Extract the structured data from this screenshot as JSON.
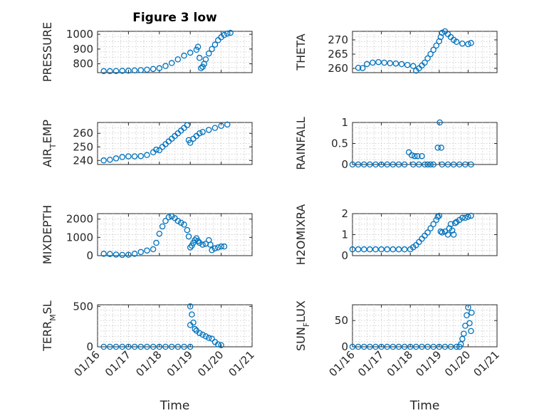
{
  "window": {
    "title": "Figure 3 low"
  },
  "chart_data": [
    {
      "type": "scatter",
      "title": "Figure 3 low",
      "ylabel": "PRESSURE",
      "xlabel": "",
      "xlim": [
        0,
        5
      ],
      "ylim": [
        740,
        1020
      ],
      "yticks": [
        800,
        900,
        1000
      ],
      "xtick_labels": [],
      "grid": true,
      "points": [
        [
          0.2,
          750
        ],
        [
          0.4,
          750
        ],
        [
          0.6,
          751
        ],
        [
          0.8,
          752
        ],
        [
          1.0,
          753
        ],
        [
          1.2,
          755
        ],
        [
          1.4,
          757
        ],
        [
          1.6,
          760
        ],
        [
          1.8,
          765
        ],
        [
          2.0,
          770
        ],
        [
          2.2,
          785
        ],
        [
          2.4,
          805
        ],
        [
          2.6,
          830
        ],
        [
          2.8,
          855
        ],
        [
          3.0,
          875
        ],
        [
          3.2,
          895
        ],
        [
          3.25,
          915
        ],
        [
          3.3,
          840
        ],
        [
          3.35,
          770
        ],
        [
          3.4,
          780
        ],
        [
          3.45,
          800
        ],
        [
          3.5,
          830
        ],
        [
          3.6,
          870
        ],
        [
          3.7,
          900
        ],
        [
          3.8,
          930
        ],
        [
          3.9,
          960
        ],
        [
          4.0,
          980
        ],
        [
          4.1,
          995
        ],
        [
          4.2,
          1005
        ],
        [
          4.3,
          1010
        ]
      ]
    },
    {
      "type": "scatter",
      "title": "",
      "ylabel": "THETA",
      "xlabel": "",
      "xlim": [
        0,
        5
      ],
      "ylim": [
        258.5,
        273
      ],
      "yticks": [
        260,
        265,
        270
      ],
      "xtick_labels": [],
      "grid": true,
      "points": [
        [
          0.2,
          260.2
        ],
        [
          0.35,
          260.1
        ],
        [
          0.5,
          261.5
        ],
        [
          0.7,
          262
        ],
        [
          0.9,
          262.2
        ],
        [
          1.1,
          262
        ],
        [
          1.3,
          261.8
        ],
        [
          1.5,
          261.7
        ],
        [
          1.7,
          261.5
        ],
        [
          1.9,
          261.2
        ],
        [
          2.1,
          260.8
        ],
        [
          2.2,
          259.2
        ],
        [
          2.3,
          260
        ],
        [
          2.4,
          261
        ],
        [
          2.5,
          262
        ],
        [
          2.6,
          263.5
        ],
        [
          2.7,
          265
        ],
        [
          2.8,
          266.5
        ],
        [
          2.9,
          268
        ],
        [
          3.0,
          269.5
        ],
        [
          3.05,
          271
        ],
        [
          3.1,
          272.5
        ],
        [
          3.2,
          273
        ],
        [
          3.3,
          272
        ],
        [
          3.4,
          271
        ],
        [
          3.5,
          270
        ],
        [
          3.6,
          269.3
        ],
        [
          3.8,
          268.7
        ],
        [
          4.0,
          268.5
        ],
        [
          4.1,
          268.9
        ]
      ]
    },
    {
      "type": "scatter",
      "title": "",
      "ylabel": "AIR_TEMP",
      "xlabel": "",
      "xlim": [
        0,
        5
      ],
      "ylim": [
        237,
        268
      ],
      "yticks": [
        240,
        250,
        260
      ],
      "xtick_labels": [],
      "grid": true,
      "points": [
        [
          0.2,
          240
        ],
        [
          0.4,
          240.5
        ],
        [
          0.6,
          241.5
        ],
        [
          0.8,
          242.5
        ],
        [
          1.0,
          243
        ],
        [
          1.2,
          243
        ],
        [
          1.4,
          243.2
        ],
        [
          1.6,
          244
        ],
        [
          1.8,
          246
        ],
        [
          1.9,
          248
        ],
        [
          2.0,
          247.5
        ],
        [
          2.1,
          250
        ],
        [
          2.2,
          252
        ],
        [
          2.3,
          254
        ],
        [
          2.4,
          256
        ],
        [
          2.5,
          258
        ],
        [
          2.6,
          260
        ],
        [
          2.7,
          262
        ],
        [
          2.8,
          264
        ],
        [
          2.9,
          266
        ],
        [
          2.95,
          255
        ],
        [
          3.0,
          253
        ],
        [
          3.1,
          256
        ],
        [
          3.2,
          258
        ],
        [
          3.3,
          260
        ],
        [
          3.4,
          261
        ],
        [
          3.6,
          262.5
        ],
        [
          3.8,
          264
        ],
        [
          4.0,
          265.5
        ],
        [
          4.2,
          266.5
        ]
      ]
    },
    {
      "type": "scatter",
      "title": "",
      "ylabel": "RAINFALL",
      "xlabel": "",
      "xlim": [
        0,
        5
      ],
      "ylim": [
        0,
        1
      ],
      "yticks": [
        0,
        0.5,
        1
      ],
      "xtick_labels": [],
      "grid": true,
      "points": [
        [
          0.0,
          0
        ],
        [
          0.2,
          0
        ],
        [
          0.4,
          0
        ],
        [
          0.6,
          0
        ],
        [
          0.8,
          0
        ],
        [
          1.0,
          0
        ],
        [
          1.2,
          0
        ],
        [
          1.4,
          0
        ],
        [
          1.6,
          0
        ],
        [
          1.8,
          0
        ],
        [
          1.95,
          0.29
        ],
        [
          2.05,
          0.22
        ],
        [
          2.1,
          0
        ],
        [
          2.15,
          0.2
        ],
        [
          2.25,
          0.2
        ],
        [
          2.3,
          0
        ],
        [
          2.4,
          0.2
        ],
        [
          2.5,
          0
        ],
        [
          2.6,
          0
        ],
        [
          2.7,
          0
        ],
        [
          2.8,
          0
        ],
        [
          2.95,
          0.4
        ],
        [
          3.02,
          1.0
        ],
        [
          3.07,
          0.4
        ],
        [
          3.1,
          0
        ],
        [
          3.3,
          0
        ],
        [
          3.5,
          0
        ],
        [
          3.7,
          0
        ],
        [
          3.9,
          0
        ],
        [
          4.1,
          0
        ]
      ]
    },
    {
      "type": "scatter",
      "title": "",
      "ylabel": "MIXDEPTH",
      "xlabel": "",
      "xlim": [
        0,
        5
      ],
      "ylim": [
        0,
        2300
      ],
      "yticks": [
        0,
        1000,
        2000
      ],
      "xtick_labels": [],
      "grid": true,
      "points": [
        [
          0.2,
          100
        ],
        [
          0.4,
          90
        ],
        [
          0.6,
          60
        ],
        [
          0.8,
          40
        ],
        [
          1.0,
          50
        ],
        [
          1.2,
          100
        ],
        [
          1.4,
          200
        ],
        [
          1.6,
          280
        ],
        [
          1.8,
          350
        ],
        [
          1.9,
          700
        ],
        [
          2.0,
          1200
        ],
        [
          2.1,
          1600
        ],
        [
          2.2,
          1900
        ],
        [
          2.3,
          2100
        ],
        [
          2.4,
          2150
        ],
        [
          2.5,
          2050
        ],
        [
          2.6,
          1900
        ],
        [
          2.7,
          1800
        ],
        [
          2.8,
          1700
        ],
        [
          2.9,
          1400
        ],
        [
          2.95,
          1050
        ],
        [
          3.0,
          450
        ],
        [
          3.05,
          550
        ],
        [
          3.1,
          700
        ],
        [
          3.15,
          850
        ],
        [
          3.2,
          950
        ],
        [
          3.25,
          800
        ],
        [
          3.3,
          700
        ],
        [
          3.4,
          600
        ],
        [
          3.5,
          650
        ],
        [
          3.6,
          850
        ],
        [
          3.65,
          600
        ],
        [
          3.7,
          300
        ],
        [
          3.8,
          400
        ],
        [
          3.9,
          450
        ],
        [
          4.0,
          500
        ],
        [
          4.1,
          500
        ]
      ]
    },
    {
      "type": "scatter",
      "title": "",
      "ylabel": "H2OMIXRA",
      "xlabel": "",
      "xlim": [
        0,
        5
      ],
      "ylim": [
        0,
        2
      ],
      "yticks": [
        0,
        1,
        2
      ],
      "xtick_labels": [],
      "grid": true,
      "points": [
        [
          0.0,
          0.3
        ],
        [
          0.2,
          0.3
        ],
        [
          0.4,
          0.3
        ],
        [
          0.6,
          0.3
        ],
        [
          0.8,
          0.3
        ],
        [
          1.0,
          0.3
        ],
        [
          1.2,
          0.3
        ],
        [
          1.4,
          0.3
        ],
        [
          1.6,
          0.3
        ],
        [
          1.8,
          0.3
        ],
        [
          2.0,
          0.3
        ],
        [
          2.1,
          0.4
        ],
        [
          2.2,
          0.5
        ],
        [
          2.3,
          0.65
        ],
        [
          2.4,
          0.8
        ],
        [
          2.5,
          0.95
        ],
        [
          2.6,
          1.1
        ],
        [
          2.7,
          1.3
        ],
        [
          2.8,
          1.5
        ],
        [
          2.9,
          1.7
        ],
        [
          2.95,
          1.85
        ],
        [
          3.0,
          1.9
        ],
        [
          3.05,
          1.15
        ],
        [
          3.1,
          1.1
        ],
        [
          3.2,
          1.15
        ],
        [
          3.3,
          1.0
        ],
        [
          3.35,
          1.3
        ],
        [
          3.4,
          1.5
        ],
        [
          3.45,
          1.2
        ],
        [
          3.5,
          1.0
        ],
        [
          3.55,
          1.55
        ],
        [
          3.6,
          1.6
        ],
        [
          3.7,
          1.7
        ],
        [
          3.8,
          1.8
        ],
        [
          3.9,
          1.8
        ],
        [
          4.0,
          1.85
        ],
        [
          4.1,
          1.9
        ]
      ]
    },
    {
      "type": "scatter",
      "title": "",
      "ylabel": "TERR_MSL",
      "xlabel": "Time",
      "xlim": [
        0,
        5
      ],
      "ylim": [
        0,
        520
      ],
      "yticks": [
        0,
        500
      ],
      "grid": true,
      "xtick_labels": [
        "01/16",
        "01/17",
        "01/18",
        "01/19",
        "01/20",
        "01/21"
      ],
      "points": [
        [
          0.2,
          0
        ],
        [
          0.4,
          0
        ],
        [
          0.6,
          0
        ],
        [
          0.8,
          0
        ],
        [
          1.0,
          0
        ],
        [
          1.2,
          0
        ],
        [
          1.4,
          0
        ],
        [
          1.6,
          0
        ],
        [
          1.8,
          0
        ],
        [
          2.0,
          0
        ],
        [
          2.2,
          0
        ],
        [
          2.4,
          0
        ],
        [
          2.6,
          0
        ],
        [
          2.8,
          0
        ],
        [
          3.0,
          0
        ],
        [
          3.0,
          500
        ],
        [
          3.0,
          270
        ],
        [
          3.05,
          400
        ],
        [
          3.1,
          300
        ],
        [
          3.15,
          220
        ],
        [
          3.2,
          200
        ],
        [
          3.3,
          170
        ],
        [
          3.4,
          150
        ],
        [
          3.5,
          130
        ],
        [
          3.6,
          110
        ],
        [
          3.7,
          100
        ],
        [
          3.8,
          60
        ],
        [
          3.9,
          30
        ],
        [
          4.0,
          20
        ]
      ]
    },
    {
      "type": "scatter",
      "title": "",
      "ylabel": "SUN_FLUX",
      "xlabel": "Time",
      "xlim": [
        0,
        5
      ],
      "ylim": [
        0,
        80
      ],
      "yticks": [
        0,
        50
      ],
      "grid": true,
      "xtick_labels": [
        "01/16",
        "01/17",
        "01/18",
        "01/19",
        "01/20",
        "01/21"
      ],
      "points": [
        [
          0.0,
          0
        ],
        [
          0.2,
          0
        ],
        [
          0.4,
          0
        ],
        [
          0.6,
          0
        ],
        [
          0.8,
          0
        ],
        [
          1.0,
          0
        ],
        [
          1.2,
          0
        ],
        [
          1.4,
          0
        ],
        [
          1.6,
          0
        ],
        [
          1.8,
          0
        ],
        [
          2.0,
          0
        ],
        [
          2.2,
          0
        ],
        [
          2.4,
          0
        ],
        [
          2.6,
          0
        ],
        [
          2.8,
          0
        ],
        [
          3.0,
          0
        ],
        [
          3.2,
          0
        ],
        [
          3.4,
          0
        ],
        [
          3.6,
          0
        ],
        [
          3.7,
          0
        ],
        [
          3.75,
          5
        ],
        [
          3.8,
          15
        ],
        [
          3.85,
          25
        ],
        [
          3.9,
          40
        ],
        [
          3.95,
          60
        ],
        [
          4.0,
          75
        ],
        [
          4.05,
          45
        ],
        [
          4.1,
          30
        ],
        [
          4.12,
          65
        ]
      ]
    }
  ]
}
